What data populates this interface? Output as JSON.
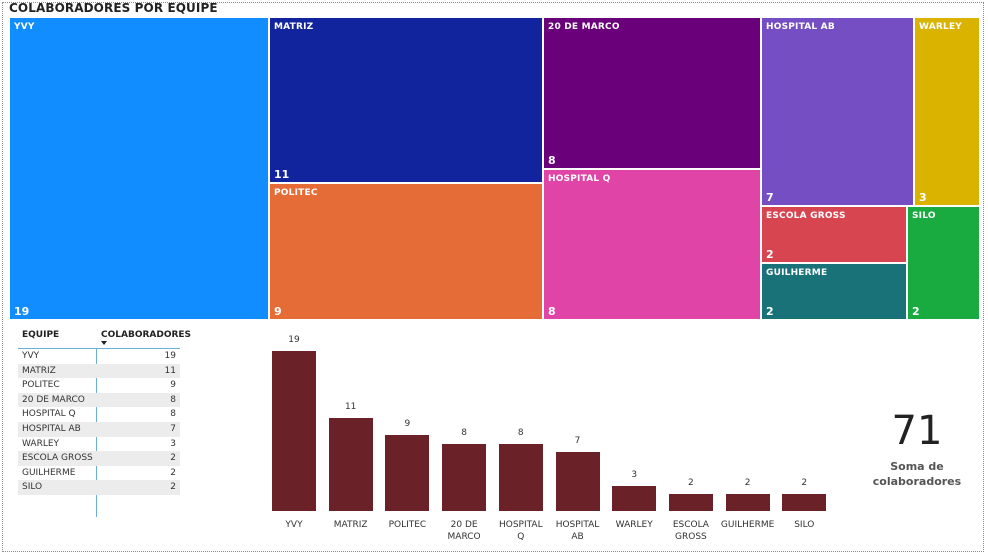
{
  "treemap": {
    "title": "COLABORADORES POR EQUIPE"
  },
  "table": {
    "header_equipe": "EQUIPE",
    "header_colaboradores": "COLABORADORES"
  },
  "kpi": {
    "value": "71",
    "label_line1": "Soma de",
    "label_line2": "colaboradores"
  },
  "chart_data": [
    {
      "type": "treemap",
      "title": "COLABORADORES POR EQUIPE",
      "categories": [
        "YVY",
        "MATRIZ",
        "POLITEC",
        "20 DE MARCO",
        "HOSPITAL Q",
        "HOSPITAL AB",
        "WARLEY",
        "ESCOLA GROSS",
        "GUILHERME",
        "SILO"
      ],
      "values": [
        19,
        11,
        9,
        8,
        8,
        7,
        3,
        2,
        2,
        2
      ],
      "colors": [
        "#118dff",
        "#12239e",
        "#e66c37",
        "#6b007b",
        "#e044a7",
        "#744ec2",
        "#d9b300",
        "#d64550",
        "#197278",
        "#1aab40"
      ]
    },
    {
      "type": "bar",
      "categories": [
        "YVY",
        "MATRIZ",
        "POLITEC",
        "20 DE MARCO",
        "HOSPITAL Q",
        "HOSPITAL AB",
        "WARLEY",
        "ESCOLA GROSS",
        "GUILHERME",
        "SILO"
      ],
      "category_lines": [
        [
          "YVY"
        ],
        [
          "MATRIZ"
        ],
        [
          "POLITEC"
        ],
        [
          "20 DE",
          "MARCO"
        ],
        [
          "HOSPITAL",
          "Q"
        ],
        [
          "HOSPITAL",
          "AB"
        ],
        [
          "WARLEY"
        ],
        [
          "ESCOLA",
          "GROSS"
        ],
        [
          "GUILHERME"
        ],
        [
          "SILO"
        ]
      ],
      "values": [
        19,
        11,
        9,
        8,
        8,
        7,
        3,
        2,
        2,
        2
      ],
      "color": "#6b2128",
      "ylim": [
        0,
        19
      ]
    },
    {
      "type": "table",
      "columns": [
        "EQUIPE",
        "COLABORADORES"
      ],
      "rows": [
        [
          "YVY",
          "19"
        ],
        [
          "MATRIZ",
          "11"
        ],
        [
          "POLITEC",
          "9"
        ],
        [
          "20 DE MARCO",
          "8"
        ],
        [
          "HOSPITAL Q",
          "8"
        ],
        [
          "HOSPITAL AB",
          "7"
        ],
        [
          "WARLEY",
          "3"
        ],
        [
          "ESCOLA GROSS",
          "2"
        ],
        [
          "GUILHERME",
          "2"
        ],
        [
          "SILO",
          "2"
        ]
      ]
    }
  ]
}
